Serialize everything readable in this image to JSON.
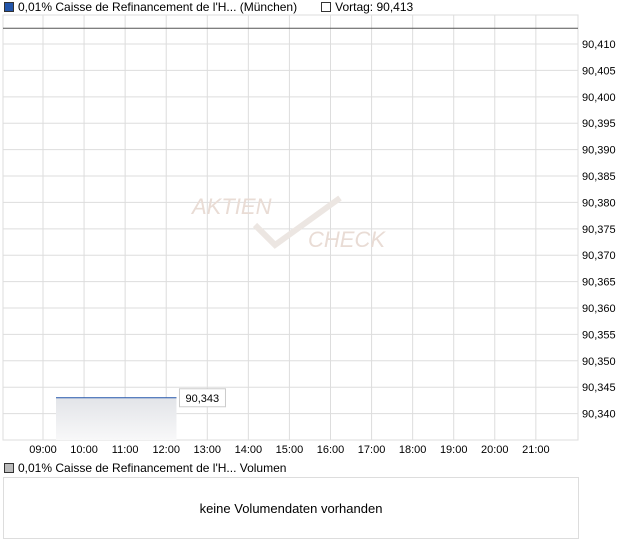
{
  "legend": {
    "series_label": "0,01% Caisse de Refinancement de l'H... (München)",
    "series_color": "#2255aa",
    "prev_label": "Vortag: 90,413"
  },
  "volume": {
    "legend_label": "0,01% Caisse de Refinancement de l'H... Volumen",
    "empty_text": "keine Volumendaten vorhanden"
  },
  "chart_data": {
    "type": "area",
    "x_ticks": [
      "09:00",
      "10:00",
      "11:00",
      "12:00",
      "13:00",
      "14:00",
      "15:00",
      "16:00",
      "17:00",
      "18:00",
      "19:00",
      "20:00",
      "21:00"
    ],
    "y_ticks": [
      "90,410",
      "90,405",
      "90,400",
      "90,395",
      "90,390",
      "90,385",
      "90,380",
      "90,375",
      "90,370",
      "90,365",
      "90,360",
      "90,355",
      "90,350",
      "90,345",
      "90,340"
    ],
    "ylim": [
      90.335,
      90.4155
    ],
    "xlim": [
      "08:00",
      "22:00"
    ],
    "series": [
      {
        "x": [
          "09:19",
          "12:15"
        ],
        "y": [
          90.343,
          90.343
        ]
      }
    ],
    "last_value_label": "90,343",
    "previous_close": 90.413,
    "grid": true,
    "watermark": "Aktien Check"
  }
}
